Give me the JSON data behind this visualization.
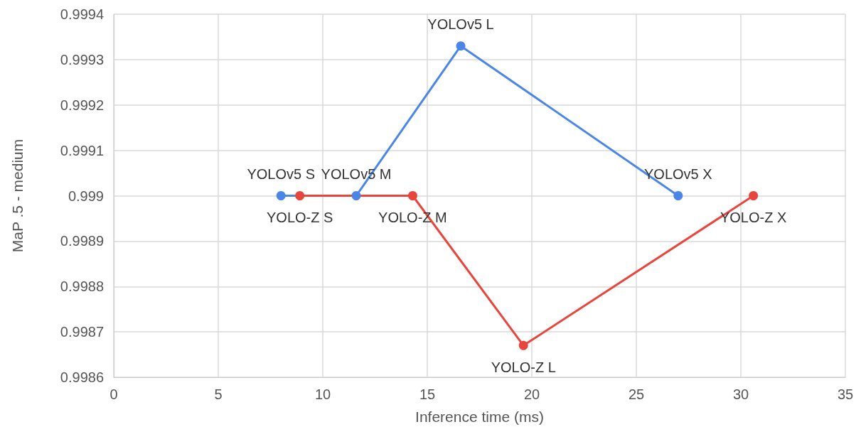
{
  "chart_data": {
    "type": "line",
    "xlabel": "Inference time (ms)",
    "ylabel": "MaP .5 - medium",
    "series": [
      {
        "color": "#4a86e8",
        "x": [
          8.0,
          11.6,
          16.6,
          27.0
        ],
        "values": [
          0.999,
          0.999,
          0.99933,
          0.999
        ],
        "value_labels": [
          "YOLOv5 S",
          "YOLOv5 M",
          "YOLOv5 L",
          "YOLOv5 X"
        ]
      },
      {
        "color": "#e8453c",
        "x": [
          8.9,
          14.3,
          19.6,
          30.6
        ],
        "values": [
          0.999,
          0.999,
          0.99867,
          0.999
        ],
        "value_labels": [
          "YOLO-Z S",
          "YOLO-Z M",
          "YOLO-Z L",
          "YOLO-Z X"
        ]
      }
    ],
    "xlim": [
      0,
      35
    ],
    "xticks": [
      0,
      5,
      10,
      15,
      20,
      25,
      30,
      35
    ],
    "ylim": [
      0.9986,
      0.9994
    ],
    "yticks": [
      0.9986,
      0.9987,
      0.9988,
      0.9989,
      0.999,
      0.9991,
      0.9992,
      0.9993,
      0.9994
    ],
    "grid": true,
    "marker": "circle",
    "line_style": "solid"
  }
}
